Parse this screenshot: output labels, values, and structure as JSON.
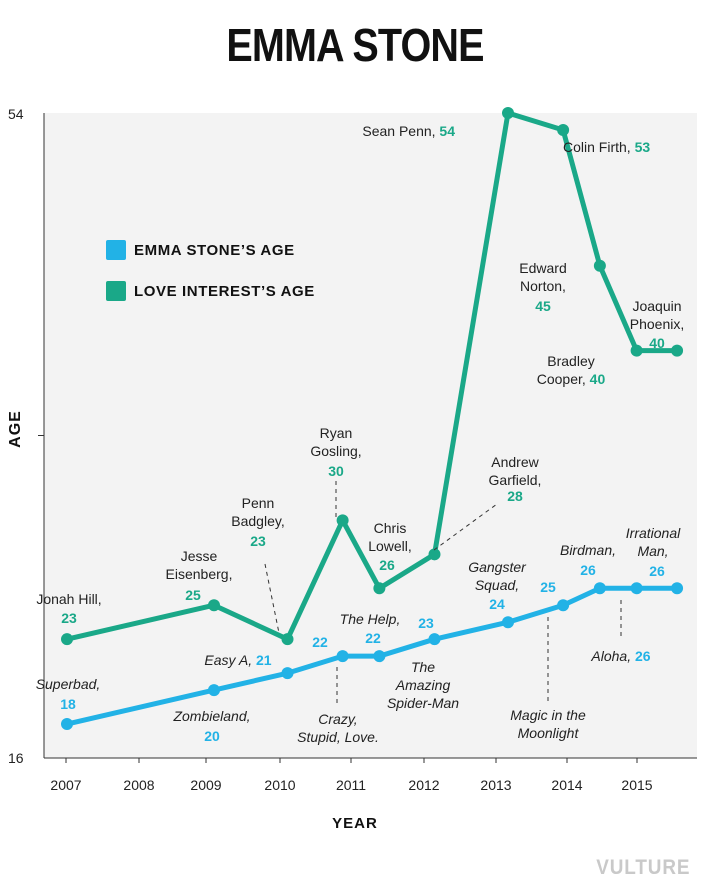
{
  "title": "EMMA STONE",
  "watermark": "VULTURE",
  "colors": {
    "emma": "#22b2e6",
    "love": "#1aa888"
  },
  "legend": {
    "emma": "EMMA STONE’S AGE",
    "love": "LOVE INTEREST’S AGE"
  },
  "chart_data": {
    "type": "line",
    "title": "EMMA STONE",
    "xlabel": "YEAR",
    "ylabel": "AGE",
    "ylim": [
      16,
      54
    ],
    "ytick_labels": [
      "54",
      "16"
    ],
    "xlim": [
      2007,
      2015.5
    ],
    "xtick_labels": [
      "2007",
      "2008",
      "2009",
      "2010",
      "2011",
      "2012",
      "2013",
      "2014",
      "2015"
    ],
    "series": [
      {
        "name": "EMMA STONE’S AGE",
        "points": [
          {
            "x": 2007.0,
            "y": 18,
            "film": "Superbad"
          },
          {
            "x": 2009.0,
            "y": 20,
            "film": "Zombieland"
          },
          {
            "x": 2010.0,
            "y": 21,
            "film": "Easy A"
          },
          {
            "x": 2010.75,
            "y": 22,
            "film": "Crazy, Stupid, Love."
          },
          {
            "x": 2011.25,
            "y": 22,
            "film": "The Help"
          },
          {
            "x": 2012.0,
            "y": 23,
            "film": "The Amazing Spider-Man"
          },
          {
            "x": 2013.0,
            "y": 24,
            "film": "Gangster Squad"
          },
          {
            "x": 2013.75,
            "y": 25,
            "film": "Magic in the Moonlight"
          },
          {
            "x": 2014.25,
            "y": 26,
            "film": "Birdman"
          },
          {
            "x": 2014.75,
            "y": 26,
            "film": "Aloha"
          },
          {
            "x": 2015.3,
            "y": 26,
            "film": "Irrational Man"
          }
        ]
      },
      {
        "name": "LOVE INTEREST’S AGE",
        "points": [
          {
            "x": 2007.0,
            "y": 23,
            "actor": "Jonah Hill"
          },
          {
            "x": 2009.0,
            "y": 25,
            "actor": "Jesse Eisenberg"
          },
          {
            "x": 2010.0,
            "y": 23,
            "actor": "Penn Badgley"
          },
          {
            "x": 2010.75,
            "y": 30,
            "actor": "Ryan Gosling"
          },
          {
            "x": 2011.25,
            "y": 26,
            "actor": "Chris Lowell"
          },
          {
            "x": 2012.0,
            "y": 28,
            "actor": "Andrew Garfield"
          },
          {
            "x": 2013.0,
            "y": 54,
            "actor": "Sean Penn"
          },
          {
            "x": 2013.75,
            "y": 53,
            "actor": "Colin Firth"
          },
          {
            "x": 2014.25,
            "y": 45,
            "actor": "Edward Norton"
          },
          {
            "x": 2014.75,
            "y": 40,
            "actor": "Bradley Cooper"
          },
          {
            "x": 2015.3,
            "y": 40,
            "actor": "Joaquin Phoenix"
          }
        ]
      }
    ]
  },
  "annotations": {
    "emma": [
      {
        "lines": [
          "Superbad,"
        ],
        "value": "18"
      },
      {
        "lines": [
          "Zombieland,"
        ],
        "value": "20"
      },
      {
        "lines": [
          "Easy A,"
        ],
        "value": "21"
      },
      {
        "lines": [
          "Crazy,",
          "Stupid, Love."
        ],
        "value": "22"
      },
      {
        "lines": [
          "The Help,"
        ],
        "value": "22"
      },
      {
        "lines": [
          "The",
          "Amazing",
          "Spider-Man"
        ],
        "value": "23"
      },
      {
        "lines": [
          "Gangster",
          "Squad,"
        ],
        "value": "24"
      },
      {
        "lines": [
          "Magic in the",
          "Moonlight"
        ],
        "value": "25"
      },
      {
        "lines": [
          "Birdman,"
        ],
        "value": "26"
      },
      {
        "lines": [
          "Aloha,"
        ],
        "value": "26"
      },
      {
        "lines": [
          "Irrational",
          "Man,"
        ],
        "value": "26"
      }
    ],
    "love": [
      {
        "lines": [
          "Jonah Hill,"
        ],
        "value": "23"
      },
      {
        "lines": [
          "Jesse",
          "Eisenberg,"
        ],
        "value": "25"
      },
      {
        "lines": [
          "Penn",
          "Badgley,"
        ],
        "value": "23"
      },
      {
        "lines": [
          "Ryan",
          "Gosling,"
        ],
        "value": "30"
      },
      {
        "lines": [
          "Chris",
          "Lowell,"
        ],
        "value": "26"
      },
      {
        "lines": [
          "Andrew",
          "Garfield,"
        ],
        "value": "28"
      },
      {
        "lines": [
          "Sean Penn,"
        ],
        "value": "54"
      },
      {
        "lines": [
          "Colin Firth,"
        ],
        "value": "53"
      },
      {
        "lines": [
          "Edward",
          "Norton,"
        ],
        "value": "45"
      },
      {
        "lines": [
          "Bradley",
          "Cooper,"
        ],
        "value": "40"
      },
      {
        "lines": [
          "Joaquin",
          "Phoenix,"
        ],
        "value": "40"
      }
    ]
  }
}
